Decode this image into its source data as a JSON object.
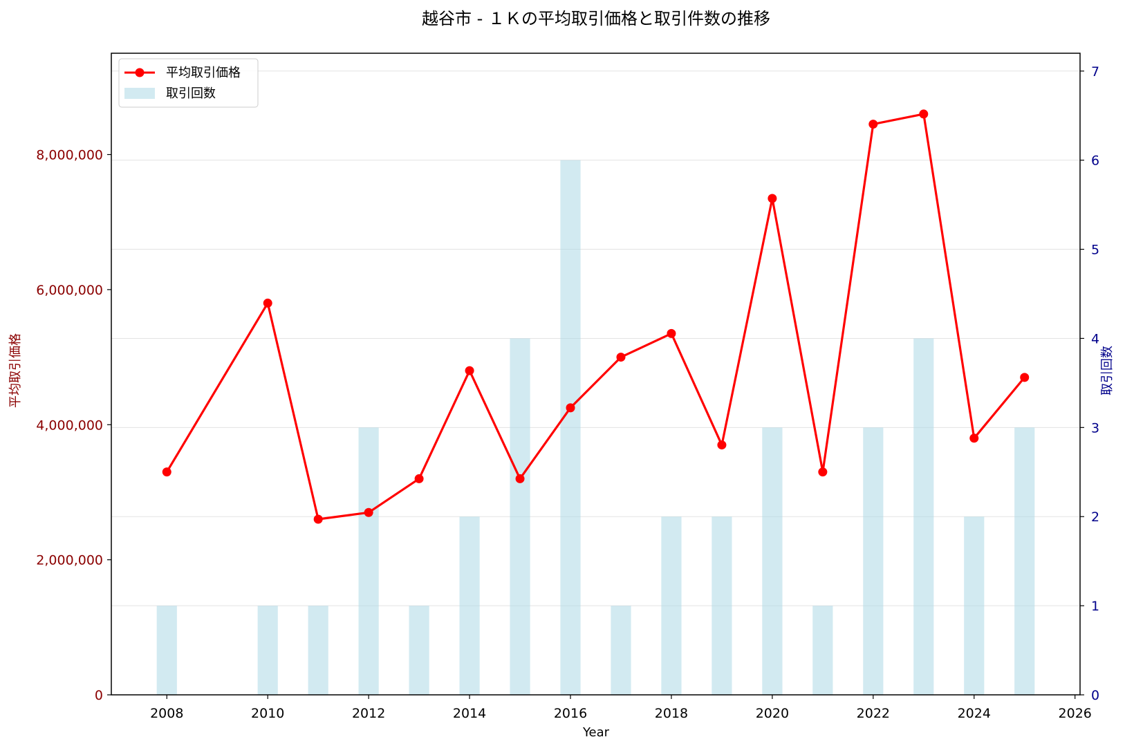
{
  "chart_data": {
    "type": "bar+line",
    "title": "越谷市 - １Ｋの平均取引価格と取引件数の推移",
    "xlabel": "Year",
    "ylabel_left": "平均取引価格",
    "ylabel_right": "取引回数",
    "x_ticks": [
      "2008",
      "2010",
      "2012",
      "2014",
      "2016",
      "2018",
      "2020",
      "2022",
      "2024",
      "2026"
    ],
    "y_left_ticks": [
      "0",
      "2,000,000",
      "4,000,000",
      "6,000,000",
      "8,000,000"
    ],
    "y_right_ticks": [
      "0",
      "1",
      "2",
      "3",
      "4",
      "5",
      "6",
      "7"
    ],
    "xlim": [
      2006.9,
      2026.1
    ],
    "ylim_left": [
      0,
      9500000
    ],
    "ylim_right": [
      0,
      7.2
    ],
    "grid": "horizontal",
    "legend_position": "top-left",
    "colors": {
      "line": "#ff0000",
      "bar": "#add8e6",
      "left_axis": "#8b0000",
      "right_axis": "#00008b"
    },
    "series": [
      {
        "name": "平均取引価格",
        "type": "line",
        "axis": "left",
        "x": [
          2008,
          2010,
          2011,
          2012,
          2013,
          2014,
          2015,
          2016,
          2017,
          2018,
          2019,
          2020,
          2021,
          2022,
          2023,
          2024,
          2025
        ],
        "values": [
          3300000,
          5800000,
          2600000,
          2700000,
          3200000,
          4800000,
          3200000,
          4250000,
          5000000,
          5350000,
          3700000,
          7350000,
          3300000,
          8450000,
          8600000,
          3800000,
          4700000
        ]
      },
      {
        "name": "取引回数",
        "type": "bar",
        "axis": "right",
        "x": [
          2008,
          2010,
          2011,
          2012,
          2013,
          2014,
          2015,
          2016,
          2017,
          2018,
          2019,
          2020,
          2021,
          2022,
          2023,
          2024,
          2025
        ],
        "values": [
          1,
          1,
          1,
          3,
          1,
          2,
          4,
          6,
          1,
          2,
          2,
          3,
          1,
          3,
          4,
          2,
          3
        ]
      }
    ]
  }
}
